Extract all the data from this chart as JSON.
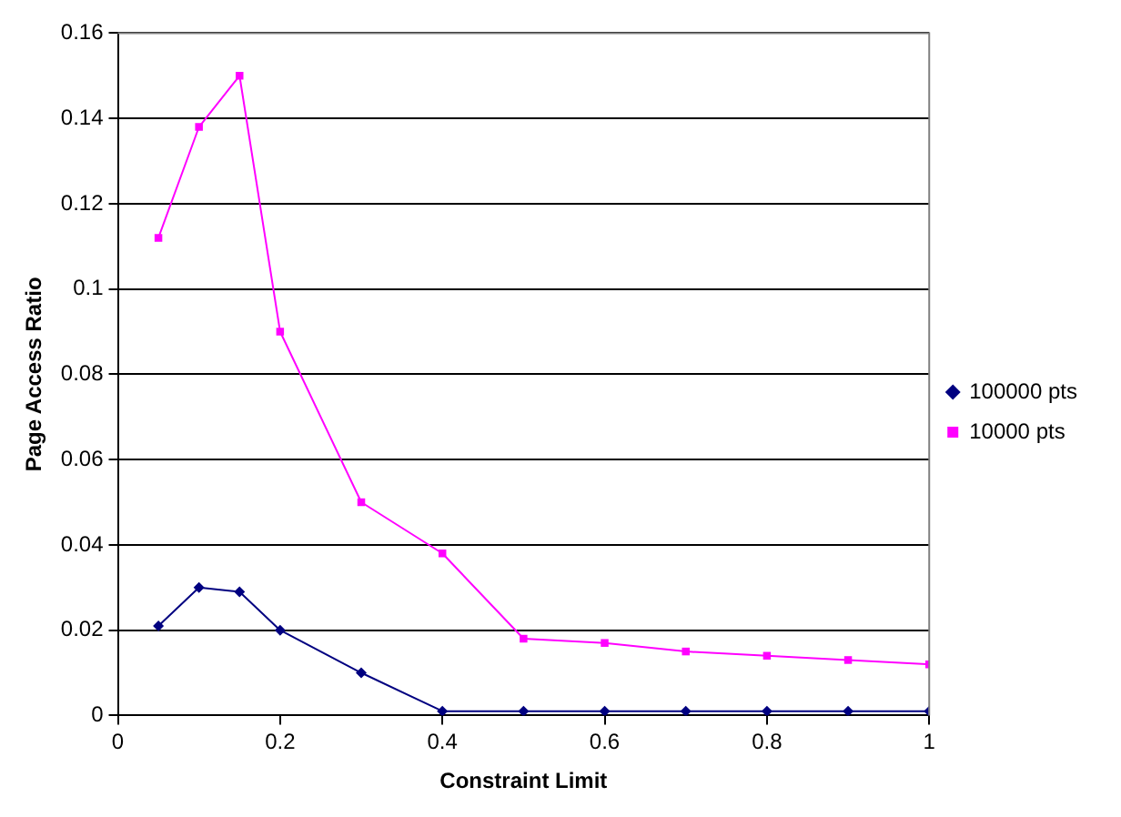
{
  "chart_data": {
    "type": "line",
    "xlabel": "Constraint Limit",
    "ylabel": "Page Access Ratio",
    "x": [
      0.05,
      0.1,
      0.15,
      0.2,
      0.3,
      0.4,
      0.5,
      0.6,
      0.7,
      0.8,
      0.9,
      1
    ],
    "series": [
      {
        "name": "100000 pts",
        "color": "#000080",
        "marker": "diamond",
        "values": [
          0.021,
          0.03,
          0.029,
          0.02,
          0.01,
          0.001,
          0.001,
          0.001,
          0.001,
          0.001,
          0.001,
          0.001
        ]
      },
      {
        "name": "10000 pts",
        "color": "#ff00ff",
        "marker": "square",
        "values": [
          0.112,
          0.138,
          0.15,
          0.09,
          0.05,
          0.038,
          0.018,
          0.017,
          0.015,
          0.014,
          0.013,
          0.012
        ]
      }
    ],
    "xlim": [
      0,
      1
    ],
    "xticks": [
      0,
      0.2,
      0.4,
      0.6,
      0.8,
      1
    ],
    "ylim": [
      0,
      0.16
    ],
    "yticks": [
      0,
      0.02,
      0.04,
      0.06,
      0.08,
      0.1,
      0.12,
      0.14,
      0.16
    ],
    "grid": "y",
    "legend": "right"
  }
}
